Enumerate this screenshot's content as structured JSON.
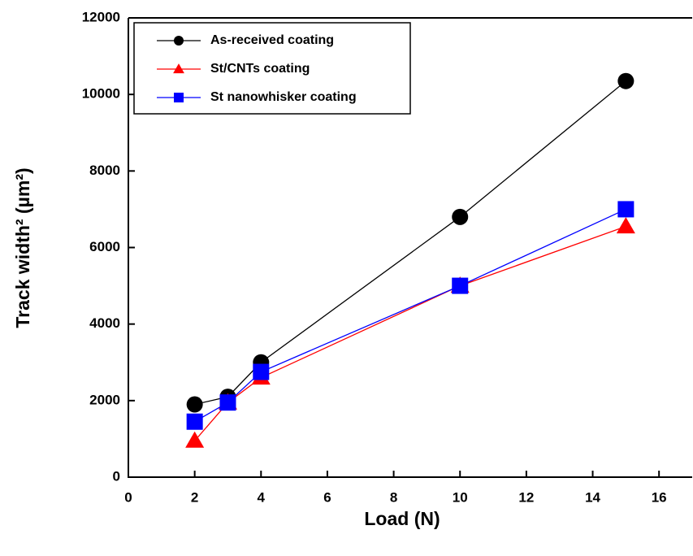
{
  "chart_data": {
    "type": "line",
    "x_label": "Load (N)",
    "y_label": "Track width² (µm²)",
    "xlim": [
      0,
      17
    ],
    "ylim": [
      0,
      12000
    ],
    "xticks": [
      0,
      2,
      4,
      6,
      8,
      10,
      12,
      14,
      16
    ],
    "yticks": [
      0,
      2000,
      4000,
      6000,
      8000,
      10000,
      12000
    ],
    "x": [
      2,
      3,
      4,
      10,
      15
    ],
    "series": [
      {
        "name": "As-received coating",
        "color": "#000000",
        "marker": "circle",
        "values": [
          1900,
          2100,
          3000,
          6800,
          10350
        ]
      },
      {
        "name": "St/CNTs coating",
        "color": "#ff0000",
        "marker": "triangle",
        "values": [
          950,
          1950,
          2600,
          5000,
          6550
        ]
      },
      {
        "name": "St nanowhisker coating",
        "color": "#0000ff",
        "marker": "square",
        "values": [
          1450,
          1950,
          2750,
          5000,
          7000
        ]
      }
    ],
    "legend": "upper left"
  }
}
